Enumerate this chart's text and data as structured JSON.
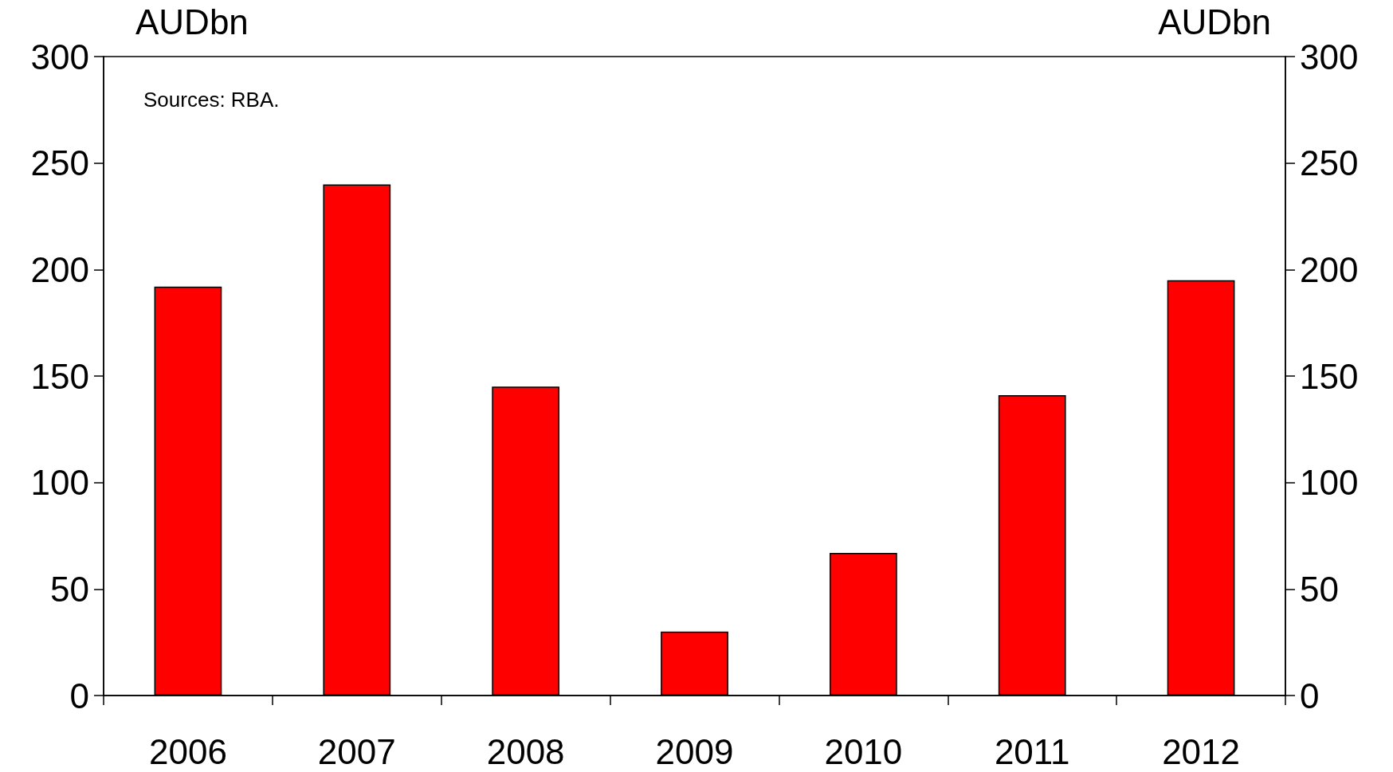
{
  "chart_data": {
    "type": "bar",
    "categories": [
      "2006",
      "2007",
      "2008",
      "2009",
      "2010",
      "2011",
      "2012"
    ],
    "values": [
      192,
      240,
      145,
      30,
      67,
      141,
      195
    ],
    "color": "#ff0000",
    "ylabel": "AUDbn",
    "y2label": "AUDbn",
    "ylim": [
      0,
      300
    ],
    "yticks": [
      0,
      50,
      100,
      150,
      200,
      250,
      300
    ],
    "y2lim": [
      0,
      300
    ],
    "y2ticks": [
      0,
      50,
      100,
      150,
      200,
      250,
      300
    ],
    "annotations": [
      "Sources: RBA."
    ],
    "grid": false
  }
}
